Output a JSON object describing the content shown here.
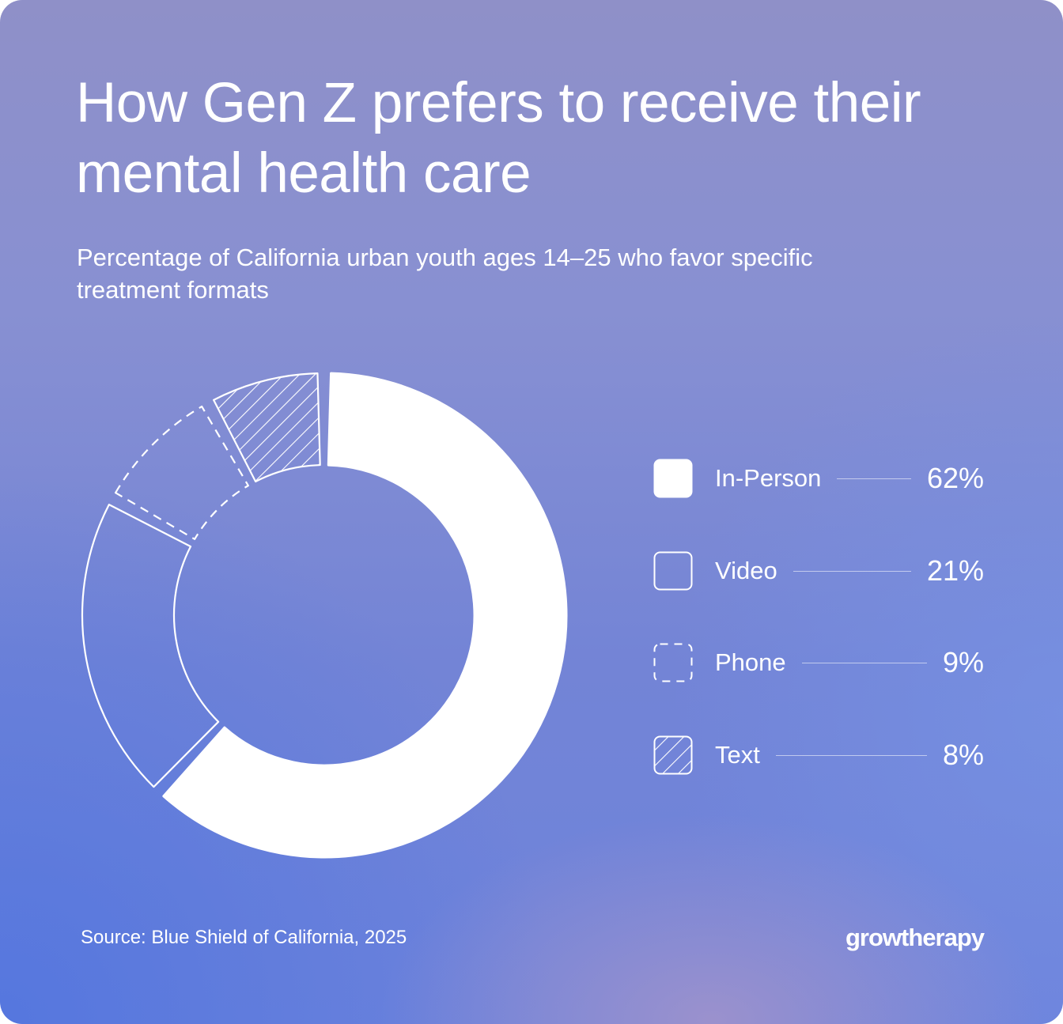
{
  "title": "How Gen Z prefers to receive their mental health care",
  "subtitle": "Percentage of California urban youth ages 14–25 who favor specific treatment formats",
  "chart_data": {
    "type": "pie",
    "categories": [
      "In-Person",
      "Video",
      "Phone",
      "Text"
    ],
    "values": [
      62,
      21,
      9,
      8
    ],
    "value_labels": [
      "62%",
      "21%",
      "9%",
      "8%"
    ],
    "unit": "%",
    "styles": [
      "solid",
      "outline",
      "dashed",
      "hatched"
    ],
    "legend_position": "right"
  },
  "source": "Source: Blue Shield of California, 2025",
  "brand": "growtherapy",
  "colors": {
    "foreground": "#ffffff",
    "background_top": "#8f90c8",
    "background_bottom": "#6d83dc"
  }
}
